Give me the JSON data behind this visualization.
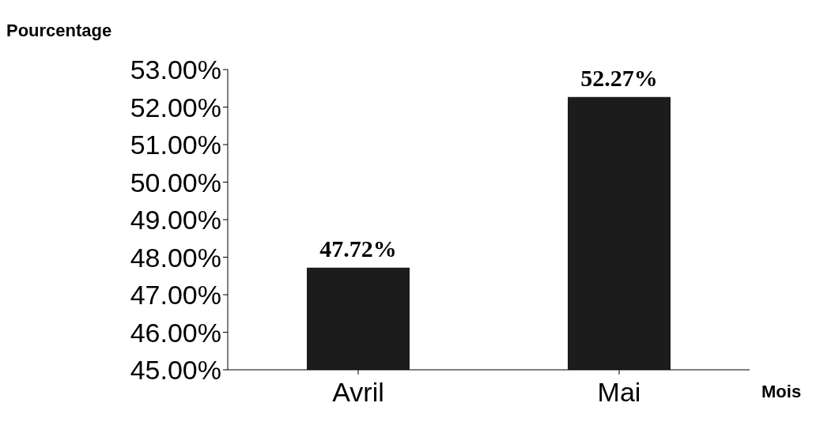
{
  "chart_data": {
    "type": "bar",
    "ylabel": "Pourcentage",
    "xlabel": "Mois",
    "categories": [
      "Avril",
      "Mai"
    ],
    "values": [
      47.72,
      52.27
    ],
    "color": "#1c1c1c",
    "value_labels": [
      "47.72%",
      "52.27%"
    ],
    "ylim": [
      45,
      53
    ],
    "yticks": [
      {
        "value": 45,
        "label": "45.00%"
      },
      {
        "value": 46,
        "label": "46.00%"
      },
      {
        "value": 47,
        "label": "47.00%"
      },
      {
        "value": 48,
        "label": "48.00%"
      },
      {
        "value": 49,
        "label": "49.00%"
      },
      {
        "value": 50,
        "label": "50.00%"
      },
      {
        "value": 51,
        "label": "51.00%"
      },
      {
        "value": 52,
        "label": "52.00%"
      },
      {
        "value": 53,
        "label": "53.00%"
      }
    ],
    "grid": false,
    "legend": false
  }
}
